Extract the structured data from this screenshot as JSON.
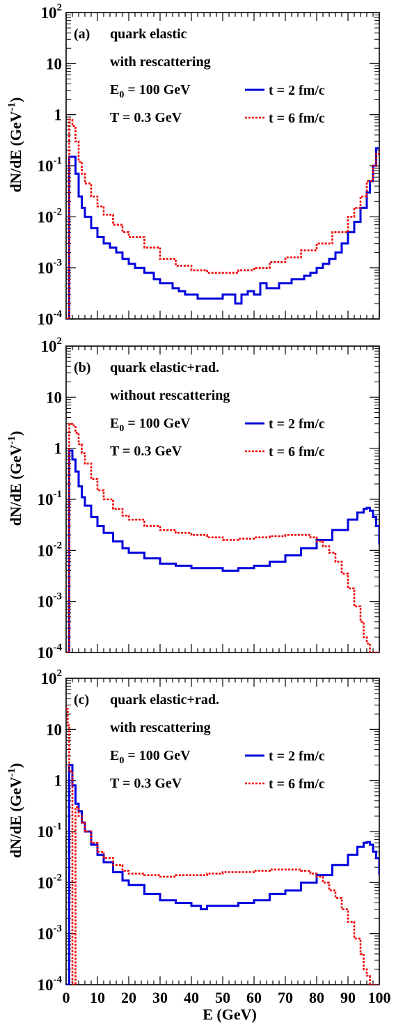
{
  "chart_data": [
    {
      "type": "line",
      "title": "",
      "xlabel": "E (GeV)",
      "ylabel": "dN/dE (GeV",
      "ylabel_sup": "-1",
      "ylabel_close": ")",
      "xlim": [
        0,
        100
      ],
      "ylim": [
        0.0001,
        100
      ],
      "yscale": "log",
      "grid": false,
      "legend_placement": "inside-upper-right",
      "x_ticks": [
        "0",
        "10",
        "20",
        "30",
        "40",
        "50",
        "60",
        "70",
        "80",
        "90",
        "100"
      ],
      "y_ticks": [
        {
          "base": "10",
          "exp": "-4"
        },
        {
          "base": "10",
          "exp": "-3"
        },
        {
          "base": "10",
          "exp": "-2"
        },
        {
          "base": "10",
          "exp": "-1"
        },
        {
          "base": "1",
          "exp": ""
        },
        {
          "base": "10",
          "exp": ""
        },
        {
          "base": "10",
          "exp": "2"
        }
      ],
      "annotations": {
        "panel": "(a)",
        "line1": "quark elastic",
        "line2": "with rescattering",
        "e0_main": "E",
        "e0_sub": "0",
        "e0_rest": " = 100 GeV",
        "temp": "T = 0.3 GeV"
      },
      "series": [
        {
          "name": "t = 2 fm/c",
          "color": "#0000dd",
          "style": "solid",
          "x": [
            0,
            1,
            2,
            3,
            4,
            5,
            6,
            8,
            10,
            12,
            14,
            16,
            18,
            20,
            22,
            25,
            28,
            30,
            32,
            34,
            36,
            38,
            40,
            42,
            44,
            46,
            48,
            50,
            52,
            54,
            56,
            58,
            60,
            62,
            64,
            66,
            68,
            70,
            72,
            74,
            76,
            78,
            80,
            82,
            84,
            86,
            88,
            90,
            92,
            94,
            96,
            97,
            98,
            99,
            100
          ],
          "y": [
            0.0001,
            0.15,
            0.15,
            0.07,
            0.025,
            0.015,
            0.01,
            0.006,
            0.004,
            0.003,
            0.0025,
            0.002,
            0.0015,
            0.0012,
            0.001,
            0.0008,
            0.0006,
            0.0005,
            0.0005,
            0.0004,
            0.00035,
            0.0003,
            0.0003,
            0.00025,
            0.00025,
            0.00025,
            0.00025,
            0.0003,
            0.0003,
            0.0002,
            0.0003,
            0.00035,
            0.0003,
            0.0005,
            0.0004,
            0.0004,
            0.0005,
            0.0005,
            0.0006,
            0.0006,
            0.0007,
            0.0008,
            0.001,
            0.0012,
            0.0015,
            0.002,
            0.003,
            0.005,
            0.008,
            0.015,
            0.03,
            0.05,
            0.1,
            0.22,
            0.22
          ]
        },
        {
          "name": "t = 6 fm/c",
          "color": "#ee0000",
          "style": "dotted",
          "x": [
            0,
            1,
            2,
            3,
            4,
            5,
            6,
            8,
            10,
            12,
            15,
            18,
            20,
            25,
            30,
            35,
            40,
            45,
            50,
            55,
            60,
            65,
            70,
            75,
            80,
            85,
            90,
            92,
            94,
            96,
            98,
            99,
            100
          ],
          "y": [
            0.0001,
            0.8,
            0.6,
            0.3,
            0.12,
            0.07,
            0.045,
            0.025,
            0.016,
            0.011,
            0.007,
            0.005,
            0.004,
            0.0025,
            0.0015,
            0.0011,
            0.0009,
            0.0008,
            0.0008,
            0.0009,
            0.001,
            0.0013,
            0.0016,
            0.0022,
            0.003,
            0.005,
            0.01,
            0.015,
            0.025,
            0.05,
            0.1,
            0.17,
            0.2
          ]
        }
      ]
    },
    {
      "type": "line",
      "title": "",
      "xlabel": "E (GeV)",
      "ylabel": "dN/dE (GeV",
      "ylabel_sup": "-1",
      "ylabel_close": ")",
      "xlim": [
        0,
        100
      ],
      "ylim": [
        0.0001,
        100
      ],
      "yscale": "log",
      "grid": false,
      "legend_placement": "inside-upper-right",
      "x_ticks": [
        "0",
        "10",
        "20",
        "30",
        "40",
        "50",
        "60",
        "70",
        "80",
        "90",
        "100"
      ],
      "y_ticks": [
        {
          "base": "10",
          "exp": "-4"
        },
        {
          "base": "10",
          "exp": "-3"
        },
        {
          "base": "10",
          "exp": "-2"
        },
        {
          "base": "10",
          "exp": "-1"
        },
        {
          "base": "1",
          "exp": ""
        },
        {
          "base": "10",
          "exp": ""
        },
        {
          "base": "10",
          "exp": "2"
        }
      ],
      "annotations": {
        "panel": "(b)",
        "line1": "quark elastic+rad.",
        "line2": "without rescattering",
        "e0_main": "E",
        "e0_sub": "0",
        "e0_rest": " = 100 GeV",
        "temp": "T = 0.3 GeV"
      },
      "series": [
        {
          "name": "t = 2 fm/c",
          "color": "#0000dd",
          "style": "solid",
          "x": [
            0,
            1,
            2,
            3,
            4,
            5,
            6,
            8,
            10,
            12,
            15,
            18,
            20,
            25,
            30,
            35,
            40,
            45,
            50,
            55,
            60,
            65,
            70,
            75,
            80,
            85,
            90,
            93,
            95,
            96,
            97,
            98,
            99,
            100
          ],
          "y": [
            0.0001,
            0.9,
            0.6,
            0.35,
            0.18,
            0.11,
            0.075,
            0.045,
            0.03,
            0.022,
            0.015,
            0.011,
            0.009,
            0.007,
            0.0055,
            0.005,
            0.0045,
            0.0045,
            0.004,
            0.0045,
            0.005,
            0.006,
            0.008,
            0.011,
            0.016,
            0.025,
            0.04,
            0.055,
            0.065,
            0.068,
            0.06,
            0.045,
            0.03,
            0.013
          ]
        },
        {
          "name": "t = 6 fm/c",
          "color": "#ee0000",
          "style": "dotted",
          "x": [
            0,
            1,
            2,
            3,
            4,
            5,
            6,
            8,
            10,
            12,
            15,
            18,
            20,
            25,
            30,
            35,
            40,
            45,
            50,
            55,
            60,
            65,
            70,
            75,
            78,
            80,
            82,
            84,
            86,
            88,
            90,
            92,
            94,
            95,
            96,
            97,
            98,
            100
          ],
          "y": [
            0.0001,
            3,
            2.8,
            2,
            1.2,
            0.8,
            0.5,
            0.25,
            0.15,
            0.1,
            0.065,
            0.048,
            0.04,
            0.03,
            0.025,
            0.022,
            0.02,
            0.018,
            0.016,
            0.017,
            0.018,
            0.019,
            0.02,
            0.02,
            0.018,
            0.015,
            0.012,
            0.009,
            0.006,
            0.0035,
            0.0018,
            0.0008,
            0.0004,
            0.0002,
            0.00015,
            0.0001,
            0.0001,
            0.0001
          ]
        }
      ]
    },
    {
      "type": "line",
      "title": "",
      "xlabel": "E (GeV)",
      "ylabel": "dN/dE (GeV",
      "ylabel_sup": "-1",
      "ylabel_close": ")",
      "xlim": [
        0,
        100
      ],
      "ylim": [
        0.0001,
        100
      ],
      "yscale": "log",
      "grid": false,
      "legend_placement": "inside-upper-right",
      "x_ticks": [
        "0",
        "10",
        "20",
        "30",
        "40",
        "50",
        "60",
        "70",
        "80",
        "90",
        "100"
      ],
      "y_ticks": [
        {
          "base": "10",
          "exp": "-4"
        },
        {
          "base": "10",
          "exp": "-3"
        },
        {
          "base": "10",
          "exp": "-2"
        },
        {
          "base": "10",
          "exp": "-1"
        },
        {
          "base": "1",
          "exp": ""
        },
        {
          "base": "10",
          "exp": ""
        },
        {
          "base": "10",
          "exp": "2"
        }
      ],
      "annotations": {
        "panel": "(c)",
        "line1": "quark elastic+rad.",
        "line2": "with rescattering",
        "e0_main": "E",
        "e0_sub": "0",
        "e0_rest": " = 100 GeV",
        "temp": "T = 0.3 GeV"
      },
      "series": [
        {
          "name": "t = 2 fm/c",
          "color": "#0000dd",
          "style": "solid",
          "x": [
            0,
            1,
            2,
            3,
            4,
            5,
            6,
            8,
            10,
            12,
            15,
            18,
            20,
            25,
            30,
            35,
            40,
            43,
            45,
            50,
            55,
            60,
            65,
            70,
            75,
            80,
            85,
            90,
            93,
            95,
            96,
            97,
            98,
            99,
            100
          ],
          "y": [
            0.0001,
            2,
            0.8,
            0.35,
            0.25,
            0.15,
            0.1,
            0.055,
            0.035,
            0.025,
            0.016,
            0.011,
            0.009,
            0.006,
            0.0045,
            0.004,
            0.0035,
            0.003,
            0.0035,
            0.0035,
            0.004,
            0.0045,
            0.006,
            0.007,
            0.01,
            0.014,
            0.022,
            0.035,
            0.05,
            0.06,
            0.062,
            0.055,
            0.04,
            0.03,
            0.014
          ]
        },
        {
          "name": "t = 6 fm/c",
          "color": "#ee0000",
          "style": "dotted",
          "x": [
            0,
            0.5,
            1,
            2,
            3,
            4,
            5,
            6,
            8,
            10,
            12,
            15,
            18,
            20,
            25,
            30,
            35,
            40,
            45,
            50,
            55,
            60,
            65,
            70,
            75,
            78,
            80,
            82,
            84,
            86,
            88,
            90,
            92,
            94,
            95,
            96,
            97,
            98,
            100
          ],
          "y": [
            25,
            12,
            1.5,
            0.0001,
            0.3,
            0.2,
            0.15,
            0.1,
            0.06,
            0.04,
            0.03,
            0.022,
            0.017,
            0.015,
            0.014,
            0.013,
            0.014,
            0.014,
            0.015,
            0.016,
            0.016,
            0.017,
            0.018,
            0.018,
            0.017,
            0.015,
            0.013,
            0.01,
            0.007,
            0.005,
            0.003,
            0.0017,
            0.0008,
            0.0004,
            0.0002,
            0.00015,
            0.0001,
            0.0001,
            0.0001
          ]
        }
      ]
    }
  ]
}
